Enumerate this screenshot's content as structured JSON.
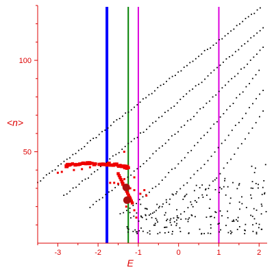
{
  "chart_data": {
    "type": "scatter",
    "title": "",
    "xlabel": "E",
    "ylabel": "<n>",
    "xlim": [
      -3.5,
      2.2
    ],
    "ylim": [
      0,
      130
    ],
    "grid": false,
    "legend": "none",
    "x_ticks": [
      -3,
      -2,
      -1,
      0,
      1,
      2
    ],
    "y_ticks": [
      50,
      100
    ],
    "tick_labels_x": [
      "-3",
      "-2",
      "-1",
      "0",
      "1",
      "2"
    ],
    "tick_labels_y": [
      "50",
      "100"
    ],
    "colors": {
      "axis": "#dd0000",
      "points": "#000000",
      "highlight": "#ee0000",
      "large_markers": "#aa1111",
      "line_blue": "#0000ff",
      "line_green": "#008000",
      "line_magenta": "#dd00dd"
    },
    "vertical_lines": [
      {
        "x": -1.78,
        "color": "#0000ff",
        "width": 4
      },
      {
        "x": -1.25,
        "color": "#008000",
        "width": 2
      },
      {
        "x": -1.0,
        "color": "#dd00dd",
        "width": 2
      },
      {
        "x": 1.0,
        "color": "#dd00dd",
        "width": 2
      }
    ],
    "bands": [
      {
        "x0": -3.5,
        "y0": 33,
        "x1": 2.1,
        "y1": 130,
        "n": 78,
        "curv": 1.0
      },
      {
        "x0": -2.85,
        "y0": 26,
        "x1": 2.1,
        "y1": 118,
        "n": 66,
        "curv": 1.05
      },
      {
        "x0": -2.2,
        "y0": 20,
        "x1": 2.1,
        "y1": 107,
        "n": 56,
        "curv": 1.1
      },
      {
        "x0": -1.45,
        "y0": 16,
        "x1": 2.0,
        "y1": 94,
        "n": 44,
        "curv": 1.2
      },
      {
        "x0": -0.9,
        "y0": 14,
        "x1": 2.1,
        "y1": 84,
        "n": 36,
        "curv": 1.3
      },
      {
        "x0": -0.3,
        "y0": 12,
        "x1": 2.1,
        "y1": 72,
        "n": 28,
        "curv": 1.4
      }
    ],
    "cluster": {
      "x0": -1.3,
      "x1": 2.2,
      "y0": 5,
      "y1": 45,
      "n": 190
    },
    "highlight_arc": {
      "cx": -2.05,
      "cy": 41,
      "rx": 0.8,
      "ry": 3.2,
      "n": 40
    },
    "highlight_branch": {
      "x0": -1.5,
      "y0": 38,
      "x1": -1.15,
      "y1": 22,
      "n": 16
    },
    "highlight_scatter": [
      [
        -2.6,
        40
      ],
      [
        -2.4,
        40.5
      ],
      [
        -2.2,
        41.5
      ],
      [
        -1.7,
        33
      ],
      [
        -1.6,
        33
      ],
      [
        -1.5,
        32.5
      ],
      [
        -1.4,
        32
      ],
      [
        -1.2,
        30
      ],
      [
        -1.1,
        29
      ],
      [
        -0.95,
        27
      ],
      [
        -0.85,
        29
      ],
      [
        -0.8,
        26
      ],
      [
        -1.25,
        24
      ],
      [
        -1.2,
        25
      ],
      [
        -1.3,
        20
      ],
      [
        -1.35,
        35
      ],
      [
        -1.1,
        36
      ],
      [
        -1.35,
        50
      ],
      [
        -1.05,
        14
      ],
      [
        -1.1,
        18
      ],
      [
        -2.9,
        39
      ],
      [
        -3.0,
        38.5
      ]
    ],
    "large_markers": [
      {
        "x": -1.3,
        "y": 30.5
      },
      {
        "x": -1.28,
        "y": 23.5
      }
    ]
  }
}
